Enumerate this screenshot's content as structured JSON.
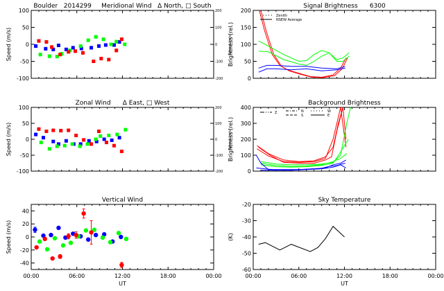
{
  "header": {
    "site": "Boulder",
    "date_code": "2014299"
  },
  "chart_data": [
    {
      "id": "meridional",
      "type": "scatter",
      "title": "Boulder   2014299     Meridional Wind   Δ North, □ South",
      "ylabel": "Speed (m/s)",
      "ylabel_right": "Speed (m/s)",
      "xlim": [
        0,
        24
      ],
      "ylim": [
        -100,
        100
      ],
      "yticks": [
        -100,
        -50,
        0,
        50,
        100
      ],
      "yticks_right": [
        -200,
        -100,
        0,
        100,
        200
      ],
      "xticks": [
        0,
        6,
        12,
        18,
        24
      ],
      "xtick_labels": [
        "",
        "",
        "",
        "",
        ""
      ],
      "series": [
        {
          "name": "blue",
          "color": "#0000ff",
          "points": [
            [
              0.6,
              -5
            ],
            [
              1.9,
              -13
            ],
            [
              2.9,
              -15
            ],
            [
              3.6,
              -3
            ],
            [
              4.6,
              -15
            ],
            [
              5.5,
              -10
            ],
            [
              6.6,
              -12
            ],
            [
              7.9,
              -10
            ],
            [
              8.9,
              -5
            ],
            [
              9.8,
              -2
            ],
            [
              10.9,
              -2
            ],
            [
              11.6,
              7
            ]
          ]
        },
        {
          "name": "green",
          "color": "#00ff00",
          "points": [
            [
              1.2,
              -30
            ],
            [
              2.4,
              -35
            ],
            [
              3.4,
              -36
            ],
            [
              4.0,
              -28
            ],
            [
              5.1,
              -18
            ],
            [
              6.5,
              -5
            ],
            [
              7.5,
              12
            ],
            [
              8.5,
              22
            ],
            [
              9.5,
              15
            ],
            [
              10.5,
              0
            ],
            [
              11.2,
              8
            ],
            [
              12.3,
              0
            ]
          ]
        },
        {
          "name": "red",
          "color": "#ff0000",
          "points": [
            [
              1.0,
              10
            ],
            [
              2.0,
              7
            ],
            [
              2.7,
              -8
            ],
            [
              3.8,
              -30
            ],
            [
              4.9,
              -22
            ],
            [
              5.8,
              -20
            ],
            [
              6.8,
              -25
            ],
            [
              8.2,
              -50
            ],
            [
              9.2,
              -42
            ],
            [
              10.2,
              -45
            ],
            [
              11.2,
              -18
            ],
            [
              11.9,
              15
            ]
          ]
        }
      ]
    },
    {
      "id": "signal",
      "type": "line",
      "title": "Signal Brightness      6300",
      "ylabel": "Brightness (rel.)",
      "xlim": [
        0,
        24
      ],
      "ylim": [
        0,
        200
      ],
      "yticks": [
        0,
        50,
        100,
        150,
        200
      ],
      "xticks": [
        0,
        6,
        12,
        18,
        24
      ],
      "legend": [
        "Zenith",
        "NSEW Average"
      ],
      "series": [
        {
          "name": "red-zenith",
          "color": "#ff0000",
          "x": [
            0.8,
            1.5,
            2.5,
            3.5,
            4.5,
            6,
            7.5,
            9,
            10.5,
            11.5,
            12.2
          ],
          "y": [
            200,
            140,
            70,
            38,
            25,
            15,
            5,
            3,
            10,
            30,
            60
          ]
        },
        {
          "name": "red-avg",
          "color": "#ff0000",
          "x": [
            1.0,
            1.7,
            2.7,
            3.7,
            4.7,
            6.2,
            7.7,
            9.2,
            10.7,
            11.7,
            12.4
          ],
          "y": [
            200,
            140,
            70,
            36,
            22,
            12,
            3,
            2,
            8,
            28,
            60
          ]
        },
        {
          "name": "green-zenith",
          "color": "#00ff00",
          "x": [
            0.7,
            2,
            4,
            6,
            7,
            8,
            9,
            10,
            11,
            11.8,
            12.6
          ],
          "y": [
            110,
            95,
            70,
            50,
            52,
            70,
            82,
            75,
            55,
            60,
            75
          ]
        },
        {
          "name": "green-avg",
          "color": "#00ff00",
          "x": [
            0.7,
            2,
            4,
            6,
            7,
            8,
            9,
            10,
            11,
            11.8,
            12.6
          ],
          "y": [
            80,
            78,
            55,
            42,
            38,
            50,
            65,
            75,
            50,
            50,
            65
          ]
        },
        {
          "name": "blue-zenith",
          "color": "#0000ff",
          "x": [
            0.7,
            1.8,
            3,
            5,
            7,
            9,
            11,
            12.1
          ],
          "y": [
            30,
            38,
            38,
            35,
            35,
            30,
            28,
            35
          ]
        },
        {
          "name": "blue-avg",
          "color": "#0000ff",
          "x": [
            0.7,
            1.8,
            3,
            5,
            7,
            9,
            11,
            12.1
          ],
          "y": [
            18,
            28,
            28,
            25,
            28,
            22,
            25,
            30
          ]
        }
      ]
    },
    {
      "id": "zonal",
      "type": "scatter",
      "title": "Zonal Wind      Δ East, □ West",
      "ylabel": "Speed (m/s)",
      "ylabel_right": "Speed (m/s)",
      "xlim": [
        0,
        24
      ],
      "ylim": [
        -100,
        100
      ],
      "yticks": [
        -100,
        -50,
        0,
        50,
        100
      ],
      "yticks_right": [
        -200,
        -100,
        0,
        100,
        200
      ],
      "xticks": [
        0,
        6,
        12,
        18,
        24
      ],
      "xtick_labels": [
        "",
        "",
        "",
        "",
        ""
      ],
      "series": [
        {
          "name": "blue",
          "color": "#0000ff",
          "points": [
            [
              0.6,
              15
            ],
            [
              1.6,
              5
            ],
            [
              2.9,
              -7
            ],
            [
              3.6,
              -15
            ],
            [
              4.6,
              -5
            ],
            [
              5.6,
              -15
            ],
            [
              6.5,
              -15
            ],
            [
              7.6,
              -5
            ],
            [
              8.6,
              -7
            ],
            [
              9.6,
              0
            ],
            [
              10.6,
              -3
            ],
            [
              11.6,
              5
            ]
          ]
        },
        {
          "name": "green",
          "color": "#00ff00",
          "points": [
            [
              1.3,
              -10
            ],
            [
              2.4,
              -30
            ],
            [
              3.4,
              -22
            ],
            [
              4.4,
              -20
            ],
            [
              5.4,
              -15
            ],
            [
              6.4,
              -22
            ],
            [
              7.4,
              -15
            ],
            [
              8.5,
              0
            ],
            [
              9.1,
              10
            ],
            [
              10.2,
              12
            ],
            [
              11.3,
              15
            ],
            [
              12.4,
              30
            ]
          ]
        },
        {
          "name": "red",
          "color": "#ff0000",
          "points": [
            [
              1.0,
              32
            ],
            [
              2.0,
              25
            ],
            [
              2.9,
              28
            ],
            [
              3.9,
              27
            ],
            [
              4.9,
              28
            ],
            [
              5.9,
              12
            ],
            [
              6.9,
              -2
            ],
            [
              7.9,
              -15
            ],
            [
              8.9,
              25
            ],
            [
              9.9,
              -10
            ],
            [
              10.9,
              -20
            ],
            [
              11.9,
              -38
            ]
          ]
        }
      ]
    },
    {
      "id": "background",
      "type": "line",
      "title": "Background Brightness",
      "ylabel": "Brightness (rel.)",
      "xlim": [
        0,
        24
      ],
      "ylim": [
        0,
        400
      ],
      "yticks": [
        0,
        100,
        200,
        300,
        400
      ],
      "xticks": [
        0,
        6,
        12,
        18,
        24
      ],
      "legend": [
        "Z",
        "N",
        "S",
        "W",
        "E"
      ],
      "series": [
        {
          "name": "red-1",
          "color": "#ff0000",
          "x": [
            0.5,
            2,
            4,
            6,
            8,
            9.5,
            10.5,
            11.2,
            11.8
          ],
          "y": [
            160,
            110,
            70,
            60,
            65,
            90,
            150,
            300,
            400
          ]
        },
        {
          "name": "red-2",
          "color": "#ff0000",
          "x": [
            0.5,
            2,
            4,
            6,
            8,
            9.5,
            10.5,
            11.5,
            12.2
          ],
          "y": [
            140,
            95,
            60,
            55,
            60,
            80,
            200,
            400,
            150
          ]
        },
        {
          "name": "red-3",
          "color": "#ff0000",
          "x": [
            0.7,
            2.2,
            4,
            6,
            8,
            9.5,
            10.3,
            11,
            11.8,
            12.2
          ],
          "y": [
            150,
            100,
            55,
            50,
            50,
            70,
            90,
            250,
            400,
            200
          ]
        },
        {
          "name": "green-1",
          "color": "#00ff00",
          "x": [
            1,
            3,
            5,
            7,
            9,
            10.5,
            11.5,
            12.3,
            12.8
          ],
          "y": [
            60,
            45,
            40,
            40,
            45,
            55,
            100,
            300,
            400
          ]
        },
        {
          "name": "green-2",
          "color": "#00ff00",
          "x": [
            1,
            3,
            5,
            7,
            9,
            10.5,
            11.5,
            12.3
          ],
          "y": [
            50,
            35,
            30,
            32,
            40,
            60,
            80,
            110
          ]
        },
        {
          "name": "green-3",
          "color": "#00ff00",
          "x": [
            1,
            3,
            5,
            7,
            9,
            10.5,
            11.5,
            12.5
          ],
          "y": [
            40,
            28,
            25,
            28,
            35,
            50,
            120,
            200
          ]
        },
        {
          "name": "blue-1",
          "color": "#0000ff",
          "x": [
            0.4,
            1,
            2,
            4,
            6,
            8,
            9.5,
            10.5,
            11.5,
            12.2
          ],
          "y": [
            100,
            50,
            10,
            10,
            10,
            15,
            20,
            40,
            50,
            70
          ]
        },
        {
          "name": "blue-2",
          "color": "#0000ff",
          "x": [
            0.4,
            1.5,
            3,
            5,
            7,
            9,
            10,
            11,
            12.1
          ],
          "y": [
            20,
            15,
            8,
            8,
            12,
            18,
            30,
            35,
            50
          ]
        },
        {
          "name": "blue-3",
          "color": "#0000ff",
          "x": [
            1,
            3,
            5,
            7,
            9,
            10.5,
            11.5,
            12.2
          ],
          "y": [
            5,
            5,
            5,
            10,
            15,
            25,
            40,
            20
          ]
        }
      ]
    },
    {
      "id": "vertical",
      "type": "scatter",
      "title": "Vertical Wind",
      "ylabel": "Speed (m/s)",
      "xlabel": "UT",
      "xlim": [
        0,
        24
      ],
      "ylim": [
        -50,
        50
      ],
      "yticks": [
        -40,
        -20,
        0,
        20,
        40
      ],
      "xticks": [
        0,
        6,
        12,
        18,
        24
      ],
      "xtick_labels": [
        "00:00",
        "06:00",
        "12:00",
        "18:00",
        "00:00"
      ],
      "series": [
        {
          "name": "blue",
          "color": "#0000ff",
          "points": [
            [
              0.5,
              11,
              4
            ],
            [
              1.6,
              2,
              0
            ],
            [
              2.6,
              3,
              0
            ],
            [
              3.6,
              14,
              0
            ],
            [
              4.5,
              -1,
              0
            ],
            [
              5.5,
              5,
              0
            ],
            [
              6.5,
              1,
              0
            ],
            [
              7.5,
              -4,
              0
            ],
            [
              8.5,
              3,
              0
            ],
            [
              9.6,
              4,
              0
            ],
            [
              10.7,
              -7,
              0
            ],
            [
              11.8,
              0,
              0
            ]
          ]
        },
        {
          "name": "green",
          "color": "#00ff00",
          "points": [
            [
              1.1,
              -7,
              0
            ],
            [
              2.1,
              -19,
              0
            ],
            [
              3.1,
              -2,
              0
            ],
            [
              4.2,
              -13,
              0
            ],
            [
              5.2,
              -9,
              0
            ],
            [
              6.2,
              1,
              0
            ],
            [
              7.2,
              10,
              0
            ],
            [
              8.3,
              11,
              0
            ],
            [
              9.4,
              -1,
              0
            ],
            [
              10.4,
              -8,
              0
            ],
            [
              11.5,
              6,
              0
            ],
            [
              12.5,
              -3,
              0
            ]
          ]
        },
        {
          "name": "red",
          "color": "#ff0000",
          "points": [
            [
              0.7,
              -16,
              0
            ],
            [
              1.8,
              -3,
              0
            ],
            [
              2.8,
              -33,
              0
            ],
            [
              3.8,
              -30,
              3
            ],
            [
              4.9,
              1,
              4
            ],
            [
              5.9,
              3,
              5
            ],
            [
              6.9,
              36,
              7
            ],
            [
              7.9,
              7,
              18
            ],
            [
              11.9,
              -43,
              4
            ]
          ]
        }
      ]
    },
    {
      "id": "skytemp",
      "type": "line",
      "title": "Sky Temperature",
      "ylabel": "(K)",
      "xlabel": "UT",
      "xlim": [
        0,
        24
      ],
      "ylim": [
        -60,
        -20
      ],
      "yticks": [
        -60,
        -50,
        -40,
        -30,
        -20
      ],
      "xticks": [
        0,
        6,
        12,
        18,
        24
      ],
      "xtick_labels": [
        "00:00",
        "06:00",
        "12:00",
        "18:00",
        "00:00"
      ],
      "series": [
        {
          "name": "sky",
          "color": "#000000",
          "x": [
            0.7,
            1.6,
            3.5,
            5.0,
            7.5,
            8.5,
            9.5,
            10.5,
            12.0
          ],
          "y": [
            -44.5,
            -43.5,
            -48,
            -44.5,
            -49,
            -46.5,
            -41,
            -33.5,
            -40
          ]
        }
      ]
    }
  ]
}
